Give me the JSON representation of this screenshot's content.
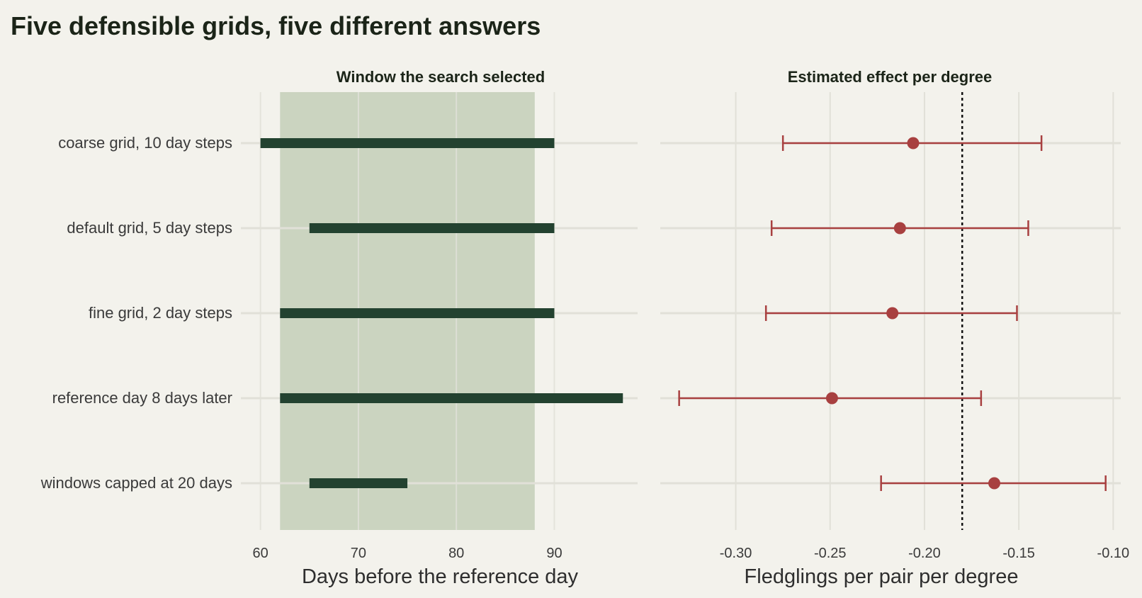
{
  "title": "Five defensible grids, five different answers",
  "colors": {
    "background": "#f3f2ec",
    "grid": "#e1e0d8",
    "selected_band": "#cbd4c0",
    "window_bar": "#234230",
    "estimate": "#a84040",
    "reference_line": "#111111",
    "text": "#3a3a3a"
  },
  "chart_data": [
    {
      "type": "bar",
      "orientation": "horizontal-range",
      "title": "Window the search selected",
      "xlabel": "Days before the reference day",
      "xlim": [
        58,
        98.5
      ],
      "xticks": [
        60,
        70,
        80,
        90
      ],
      "categories": [
        "coarse grid, 10 day steps",
        "default grid, 5 day steps",
        "fine grid, 2 day steps",
        "reference day 8 days later",
        "windows capped at 20 days"
      ],
      "highlight_band": [
        62,
        88
      ],
      "series": [
        {
          "values": [
            {
              "start": 60,
              "end": 90
            },
            {
              "start": 65,
              "end": 90
            },
            {
              "start": 62,
              "end": 90
            },
            {
              "start": 62,
              "end": 97
            },
            {
              "start": 65,
              "end": 75
            }
          ]
        }
      ],
      "grid": true
    },
    {
      "type": "scatter",
      "orientation": "horizontal-errorbar",
      "title": "Estimated effect per degree",
      "xlabel": "Fledglings per pair per degree",
      "xlim": [
        -0.34,
        -0.096
      ],
      "xticks": [
        -0.3,
        -0.25,
        -0.2,
        -0.15,
        -0.1
      ],
      "xtick_labels": [
        "-0.30",
        "-0.25",
        "-0.20",
        "-0.15",
        "-0.10"
      ],
      "categories": [
        "coarse grid, 10 day steps",
        "default grid, 5 day steps",
        "fine grid, 2 day steps",
        "reference day 8 days later",
        "windows capped at 20 days"
      ],
      "reference_x": -0.18,
      "series": [
        {
          "points": [
            {
              "estimate": -0.206,
              "low": -0.275,
              "high": -0.138
            },
            {
              "estimate": -0.213,
              "low": -0.281,
              "high": -0.145
            },
            {
              "estimate": -0.217,
              "low": -0.284,
              "high": -0.151
            },
            {
              "estimate": -0.249,
              "low": -0.33,
              "high": -0.17
            },
            {
              "estimate": -0.163,
              "low": -0.223,
              "high": -0.104
            }
          ]
        }
      ],
      "grid": true
    }
  ]
}
